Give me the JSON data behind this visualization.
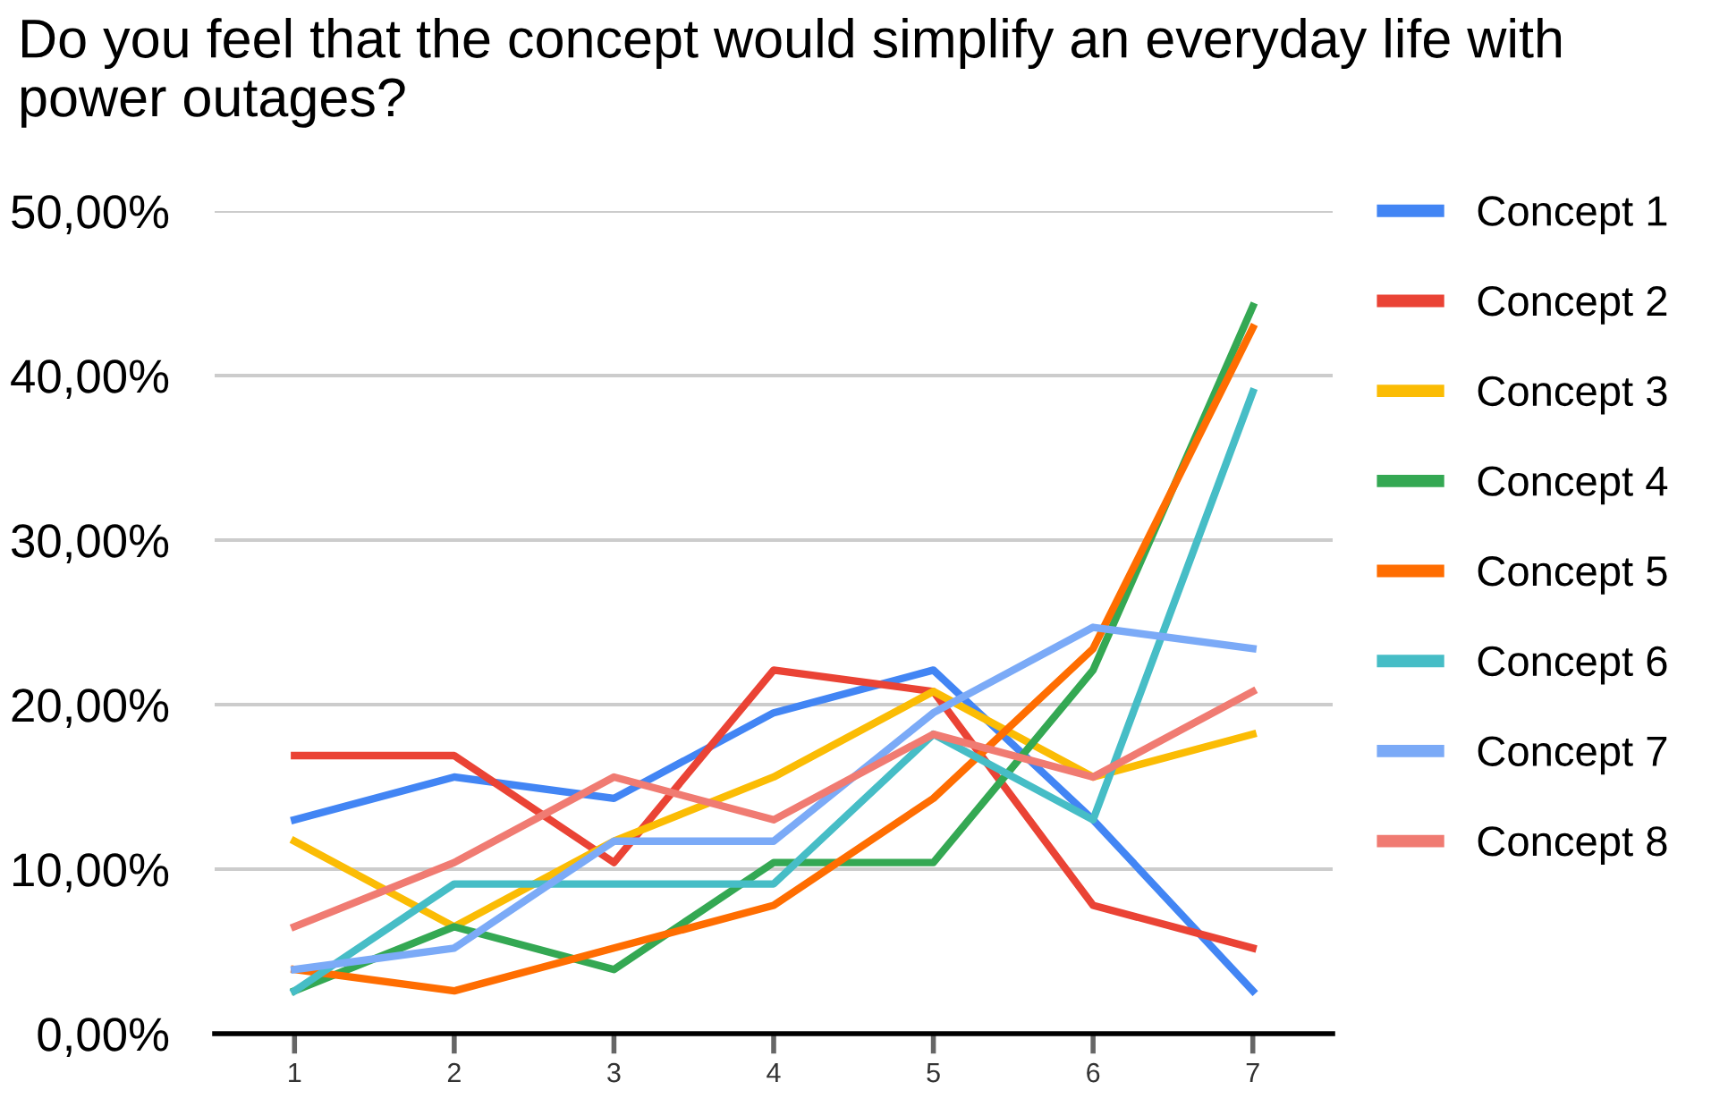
{
  "chart_data": {
    "type": "line",
    "title": "Do you feel that the concept would simplify an everyday life with power outages?",
    "categories": [
      "1",
      "2",
      "3",
      "4",
      "5",
      "6",
      "7"
    ],
    "ylim": [
      0,
      50
    ],
    "yticks": [
      {
        "value": 0,
        "label": "0,00%"
      },
      {
        "value": 10,
        "label": "10,00%"
      },
      {
        "value": 20,
        "label": "20,00%"
      },
      {
        "value": 30,
        "label": "30,00%"
      },
      {
        "value": 40,
        "label": "40,00%"
      },
      {
        "value": 50,
        "label": "50,00%"
      }
    ],
    "grid": "y",
    "legend": "right",
    "marker": "none",
    "line_style": "solid",
    "series": [
      {
        "name": "Concept 1",
        "color": "#4285f4",
        "values": [
          13.0,
          15.6,
          14.3,
          19.5,
          22.1,
          13.0,
          2.6
        ]
      },
      {
        "name": "Concept 2",
        "color": "#ea4335",
        "values": [
          16.9,
          16.9,
          10.4,
          22.1,
          20.8,
          7.8,
          5.2
        ]
      },
      {
        "name": "Concept 3",
        "color": "#fbbc04",
        "values": [
          11.7,
          6.5,
          11.7,
          15.6,
          20.8,
          15.6,
          18.2
        ]
      },
      {
        "name": "Concept 4",
        "color": "#34a853",
        "values": [
          2.6,
          6.5,
          3.9,
          10.4,
          10.4,
          22.1,
          44.2
        ]
      },
      {
        "name": "Concept 5",
        "color": "#ff6d01",
        "values": [
          3.9,
          2.6,
          5.2,
          7.8,
          14.3,
          23.4,
          42.9
        ]
      },
      {
        "name": "Concept 6",
        "color": "#46bdc6",
        "values": [
          2.6,
          9.1,
          9.1,
          9.1,
          18.2,
          13.0,
          39.0
        ]
      },
      {
        "name": "Concept 7",
        "color": "#7baaf7",
        "values": [
          3.9,
          5.2,
          11.7,
          11.7,
          19.5,
          24.7,
          23.4
        ]
      },
      {
        "name": "Concept 8",
        "color": "#f07b72",
        "values": [
          6.5,
          10.4,
          15.6,
          13.0,
          18.2,
          15.6,
          20.8
        ]
      }
    ]
  }
}
